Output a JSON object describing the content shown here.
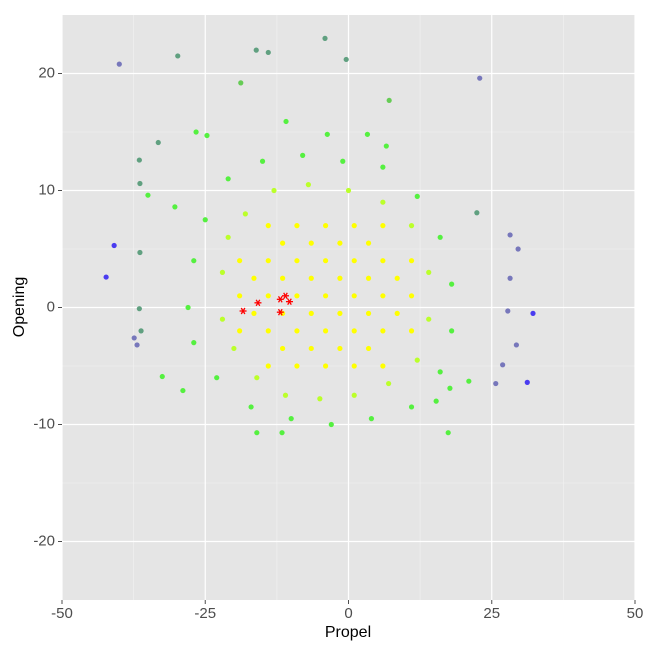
{
  "chart_data": {
    "type": "scatter",
    "x_label": "Propel",
    "y_label": "Opening",
    "xlim": [
      -50,
      50
    ],
    "ylim": [
      -25,
      25
    ],
    "xticks": [
      -50,
      -25,
      0,
      25,
      50
    ],
    "yticks": [
      -20,
      -10,
      0,
      10,
      20
    ],
    "minor_xticks": [
      -37.5,
      -12.5,
      12.5,
      37.5
    ],
    "minor_yticks": [
      -15,
      -5,
      5,
      15
    ],
    "grid": true,
    "background": "#e5e5e5",
    "series": [
      {
        "color": "#ffff00",
        "marker": "circle",
        "x": [
          -14,
          -9,
          -4,
          1,
          6,
          -19,
          -14,
          -9,
          -4,
          1,
          6,
          11,
          -19,
          -14,
          -9,
          -4,
          1,
          6,
          11,
          -19,
          -14,
          -9,
          -4,
          1,
          6,
          11,
          -14,
          -9,
          -4,
          1,
          6,
          -11.5,
          -6.5,
          -1.5,
          3.5,
          -16.5,
          -11.5,
          -6.5,
          -1.5,
          3.5,
          8.5,
          -11.5,
          -6.5,
          -1.5,
          3.5,
          -16.5,
          -11.5,
          -6.5,
          -1.5,
          3.5,
          8.5
        ],
        "values": [
          -5,
          -5,
          -5,
          -5,
          -5,
          -2,
          -2,
          -2,
          -2,
          -2,
          -2,
          -2,
          1,
          1,
          1,
          1,
          1,
          1,
          1,
          4,
          4,
          4,
          4,
          4,
          4,
          4,
          7,
          7,
          7,
          7,
          7,
          -3.5,
          -3.5,
          -3.5,
          -3.5,
          2.5,
          2.5,
          2.5,
          2.5,
          2.5,
          2.5,
          5.5,
          5.5,
          5.5,
          5.5,
          -0.5,
          -0.5,
          -0.5,
          -0.5,
          -0.5,
          -0.5
        ]
      },
      {
        "color": "#bbff2a",
        "marker": "circle",
        "x": [
          -22,
          -22,
          -21,
          -18,
          -13,
          -7,
          0,
          6,
          11,
          14,
          14,
          12,
          7,
          1,
          -5,
          -11,
          -16,
          -20
        ],
        "values": [
          3,
          -1,
          6,
          8,
          10,
          10.5,
          10,
          9,
          7,
          3,
          -1,
          -4.5,
          -6.5,
          -7.5,
          -7.8,
          -7.5,
          -6,
          -3.5
        ]
      },
      {
        "color": "#55f040",
        "marker": "circle",
        "x": [
          -27,
          -28,
          -27,
          -25,
          -21,
          -15,
          -8,
          -1,
          6,
          12,
          16,
          18,
          18,
          16,
          11,
          4,
          -3,
          -10,
          -17,
          -23,
          -26.6,
          -24.7,
          6.6,
          3.3,
          -3.7,
          -10.9,
          17.4,
          -16,
          -11.6,
          -32.5,
          -28.9,
          21,
          15.3,
          17.7,
          -30.3,
          -35
        ],
        "values": [
          4,
          0,
          -3,
          7.5,
          11,
          12.5,
          13,
          12.5,
          12,
          9.5,
          6,
          2,
          -2,
          -5.5,
          -8.5,
          -9.5,
          -10,
          -9.5,
          -8.5,
          -6,
          15,
          14.7,
          13.8,
          14.8,
          14.8,
          15.9,
          -10.7,
          -10.7,
          -10.7,
          -5.9,
          -7.1,
          -6.3,
          -8,
          -6.9,
          8.6,
          9.6
        ]
      },
      {
        "color": "#66cc55",
        "marker": "circle",
        "x": [
          -18.8,
          7.1
        ],
        "values": [
          19.2,
          17.7
        ]
      },
      {
        "color": "#60a080",
        "marker": "circle",
        "x": [
          -29.8,
          -16.1,
          -14,
          -4.1,
          -0.4,
          -33.2,
          -36.5,
          -36.4,
          -36.4,
          -36.5,
          -36.2,
          22.4
        ],
        "values": [
          21.5,
          22,
          21.8,
          23,
          21.2,
          14.1,
          12.6,
          10.6,
          4.7,
          -0.1,
          -2,
          8.1
        ]
      },
      {
        "color": "#7777bb",
        "marker": "circle",
        "x": [
          -40,
          22.9,
          28.2,
          29.6,
          28.2,
          27.8,
          26.9,
          29.3,
          -37.4,
          -36.9,
          25.7
        ],
        "values": [
          20.8,
          19.6,
          6.2,
          5,
          2.5,
          -0.3,
          -4.9,
          -3.2,
          -2.6,
          -3.2,
          -6.5
        ]
      },
      {
        "color": "#4a3cf0",
        "marker": "circle",
        "x": [
          -40.9,
          -42.3,
          32.2,
          31.2
        ],
        "values": [
          5.3,
          2.6,
          -0.5,
          -6.4
        ]
      },
      {
        "color": "#ff0000",
        "marker": "star",
        "x": [
          -18.4,
          -15.8,
          -11.9,
          -11,
          -10.3,
          -11.9
        ],
        "values": [
          -0.3,
          0.4,
          0.7,
          1,
          0.5,
          -0.4
        ]
      }
    ]
  }
}
